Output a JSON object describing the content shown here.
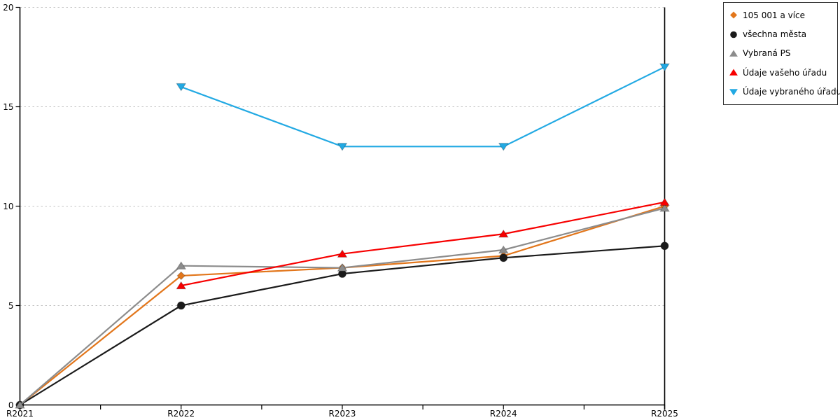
{
  "chart_data": {
    "type": "line",
    "title": "",
    "categories": [
      "R2021",
      "R2022",
      "R2023",
      "R2024",
      "R2025"
    ],
    "series": [
      {
        "name": "105 001 a více",
        "marker": "diamond",
        "color": "#E2761B",
        "values": [
          0,
          6.5,
          6.9,
          7.5,
          10
        ]
      },
      {
        "name": "všechna města",
        "marker": "circle",
        "color": "#1A1A1A",
        "values": [
          0,
          5,
          6.6,
          7.4,
          8
        ]
      },
      {
        "name": "Vybraná PS",
        "marker": "triangle-up",
        "color": "#8C8C8C",
        "values": [
          0,
          7,
          6.9,
          7.8,
          9.9
        ]
      },
      {
        "name": "Údaje vašeho úřadu",
        "marker": "triangle-up",
        "color": "#F70000",
        "values": [
          null,
          6,
          7.6,
          8.6,
          10.2
        ]
      },
      {
        "name": "Údaje vybraného úřadu",
        "marker": "triangle-down",
        "color": "#22A9E3",
        "values": [
          null,
          16,
          13,
          13,
          17
        ]
      }
    ],
    "xlabel": "",
    "ylabel": "",
    "ylim": [
      0,
      20
    ],
    "yticks": [
      0,
      5,
      10,
      15,
      20
    ],
    "grid": "horizontal-dashed",
    "gridline_color": "#C4C4C4",
    "axis_color": "#000000",
    "legend_position": "top-right"
  }
}
